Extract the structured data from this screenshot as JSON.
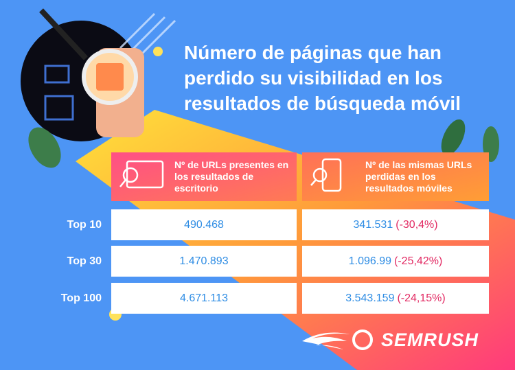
{
  "header": {
    "title": "Número de páginas que han perdido su visibilidad en los resultados de búsqueda móvil"
  },
  "table": {
    "columns": [
      "Nº de URLs presentes en los resultados de escritorio",
      "Nº de las mismas URLs perdidas en los resultados móviles"
    ],
    "rows": [
      {
        "label": "Top 10",
        "desktop": "490.468",
        "mobile": "341.531",
        "change": "(-30,4%)"
      },
      {
        "label": "Top 30",
        "desktop": "1.470.893",
        "mobile": "1.096.99",
        "change": "(-25,42%)"
      },
      {
        "label": "Top 100",
        "desktop": "4.671.113",
        "mobile": "3.543.159",
        "change": "(-24,15%)"
      }
    ]
  },
  "logo": "SEMRUSH"
}
